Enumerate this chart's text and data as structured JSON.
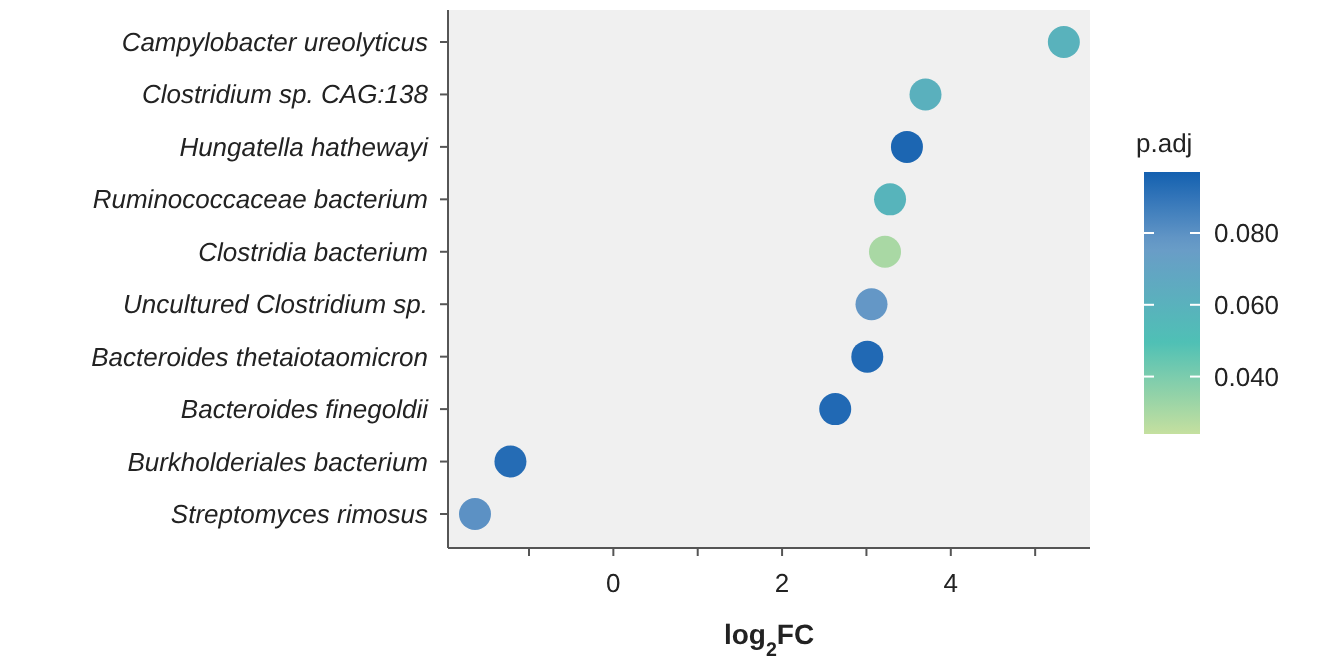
{
  "chart_data": {
    "type": "scatter",
    "orientation": "horizontal",
    "xlabel": "log$_{2}$FC",
    "clabel": "p.adj",
    "categories": [
      "Campylobacter ureolyticus",
      "Clostridium sp. CAG:138",
      "Hungatella hathewayi",
      "Ruminococcaceae bacterium",
      "Clostridia bacterium",
      "Uncultured Clostridium sp.",
      "Bacteroides thetaiotaomicron",
      "Bacteroides finegoldii",
      "Burkholderiales bacterium",
      "Streptomyces rimosus"
    ],
    "values": [
      5.34,
      3.7,
      3.48,
      3.28,
      3.22,
      3.06,
      3.01,
      2.63,
      -1.22,
      -1.64
    ],
    "cvalues": [
      0.06,
      0.061,
      0.095,
      0.058,
      0.03,
      0.078,
      0.094,
      0.094,
      0.093,
      0.08
    ],
    "xlim": [
      -1.96,
      5.65
    ],
    "xticks": [
      {
        "value": -1,
        "label": null
      },
      0,
      {
        "value": 1,
        "label": null
      },
      2,
      {
        "value": 3,
        "label": null
      },
      4,
      {
        "value": 5,
        "label": null
      }
    ],
    "clim": [
      0.024,
      0.097
    ],
    "cticks": [
      {
        "value": 0.04,
        "label": "0.040"
      },
      {
        "value": 0.06,
        "label": "0.060"
      },
      {
        "value": 0.08,
        "label": "0.080"
      }
    ],
    "grid": false,
    "marker": "circle"
  }
}
